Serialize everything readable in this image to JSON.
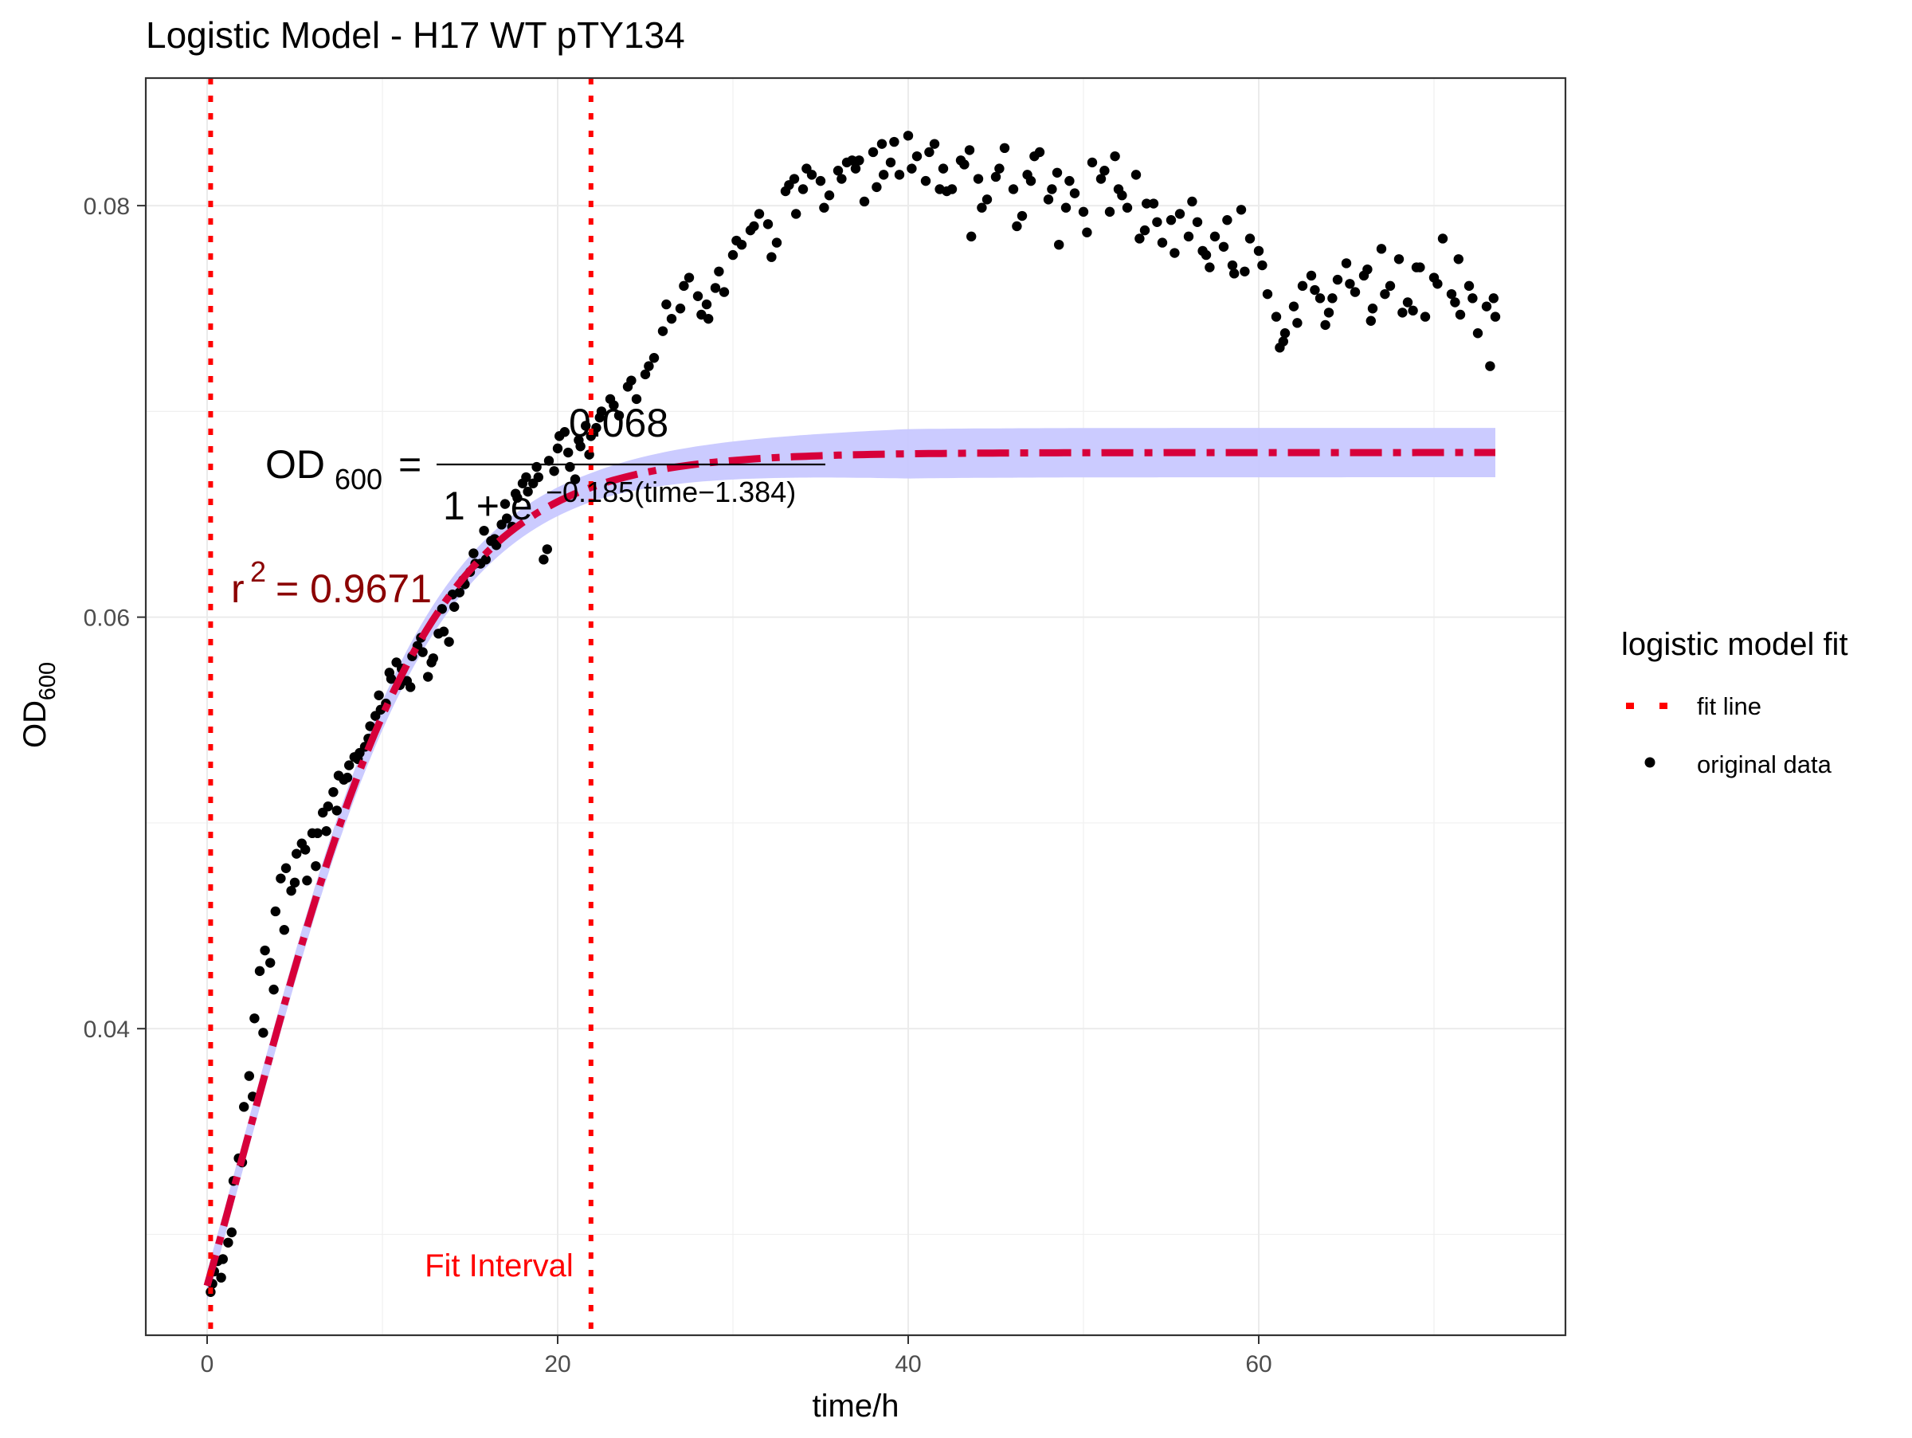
{
  "chart_data": {
    "type": "scatter",
    "title": "Logistic Model -  H17 WT pTY134",
    "xlabel": "time/h",
    "ylabel": {
      "main": "OD",
      "sub": "600"
    },
    "xlim": [
      -3.5,
      77.5
    ],
    "ylim": [
      0.0251,
      0.0862
    ],
    "x_ticks": [
      0,
      20,
      40,
      60
    ],
    "x_tick_labels": [
      "0",
      "20",
      "40",
      "60"
    ],
    "y_ticks": [
      0.04,
      0.06,
      0.08
    ],
    "y_tick_labels": [
      "0.04",
      "0.06",
      "0.08"
    ],
    "grid": true,
    "legend": {
      "title": "logistic model fit",
      "placement": "right",
      "entries": [
        {
          "label": "fit line",
          "kind": "line",
          "color": "#ff0000"
        },
        {
          "label": "original data",
          "kind": "point",
          "color": "#000000"
        }
      ]
    },
    "fit_interval": {
      "x": [
        0.2,
        21.9
      ],
      "label": "Fit Interval",
      "color": "#ff0000"
    },
    "equation": {
      "lhs": "OD",
      "lhs_sub": "600",
      "numerator": "0.068",
      "denominator_base": "1 + e",
      "denominator_exponent": "−0.185(time−1.384)"
    },
    "r_squared": {
      "prefix": "r",
      "power": "2",
      "value": "= 0.9671"
    },
    "model": {
      "K": 0.068,
      "r": 0.185,
      "t0": 1.384,
      "N0": 0.0275
    },
    "confidence_band": {
      "color": "#c8c8ff"
    },
    "fit_line": {
      "color": "#d7003a"
    },
    "points_series": [
      {
        "x": [
          0.2,
          0.4,
          0.6,
          0.9,
          1.2,
          1.5,
          1.8,
          2.1,
          2.4,
          2.7,
          3.0,
          3.3,
          3.6,
          3.9,
          4.2,
          4.5,
          4.8,
          5.1,
          5.4,
          5.7,
          6.0,
          6.3,
          6.6,
          6.9,
          7.2,
          7.5,
          7.8,
          8.1,
          8.4,
          8.7,
          9.0,
          9.3,
          9.6,
          9.9,
          10.2,
          10.5,
          10.8,
          11.1,
          11.4,
          11.7,
          12.0,
          12.3,
          12.6,
          12.9,
          13.2,
          13.5,
          13.8,
          14.1,
          14.4,
          14.7,
          15.0,
          15.3,
          15.6,
          15.9,
          16.2,
          16.5,
          16.8,
          17.1,
          17.4,
          17.7,
          18.0,
          18.3,
          18.6,
          18.9,
          19.2,
          19.5,
          19.8,
          20.1,
          20.4,
          20.7,
          21.0,
          21.3,
          21.6,
          21.9,
          22.2,
          22.5
        ],
        "y": [
          0.0272,
          0.0282,
          0.0287,
          0.0288,
          0.0296,
          0.0326,
          0.0337,
          0.0362,
          0.0377,
          0.0405,
          0.0428,
          0.0438,
          0.0432,
          0.0457,
          0.0473,
          0.0478,
          0.0467,
          0.0485,
          0.049,
          0.0472,
          0.0495,
          0.0495,
          0.0505,
          0.0508,
          0.0515,
          0.0523,
          0.0521,
          0.0528,
          0.0532,
          0.0534,
          0.0537,
          0.0547,
          0.0552,
          0.0555,
          0.0558,
          0.057,
          0.0578,
          0.0575,
          0.0569,
          0.0581,
          0.0586,
          0.0583,
          0.0571,
          0.058,
          0.0592,
          0.0593,
          0.0588,
          0.0605,
          0.0612,
          0.0616,
          0.0622,
          0.0626,
          0.0626,
          0.0628,
          0.0637,
          0.0635,
          0.0645,
          0.0648,
          0.0644,
          0.0658,
          0.0665,
          0.0661,
          0.0665,
          0.0668,
          0.0628,
          0.0676,
          0.0671,
          0.0688,
          0.069,
          0.0673,
          0.0667,
          0.0683,
          0.0693,
          0.0688,
          0.0692,
          0.07
        ]
      },
      {
        "x": [
          23.0,
          23.5,
          24.0,
          24.5,
          25.0,
          25.5,
          26.0,
          26.5,
          27.0,
          27.5,
          28.0,
          28.5,
          29.0,
          29.5,
          30.0,
          30.5,
          31.0,
          31.5,
          32.0,
          32.5,
          33.0,
          33.5,
          34.0,
          34.5,
          35.0,
          35.5,
          36.0,
          36.5,
          37.0,
          37.5,
          38.0,
          38.5,
          39.0,
          39.5,
          40.0,
          40.5,
          41.0,
          41.5,
          42.0,
          42.5,
          43.0,
          43.5,
          44.0,
          44.5,
          45.0,
          45.5,
          46.0,
          46.5,
          47.0,
          47.5,
          48.0,
          48.5,
          49.0,
          49.5,
          50.0,
          50.5,
          51.0,
          51.5,
          52.0,
          52.5,
          53.0,
          53.5,
          54.0,
          54.5,
          55.0,
          55.5,
          56.0,
          56.5,
          57.0,
          57.5,
          58.0,
          58.5,
          59.0,
          59.5,
          60.0
        ],
        "y": [
          0.0706,
          0.0698,
          0.0712,
          0.0706,
          0.0718,
          0.0726,
          0.0739,
          0.0745,
          0.075,
          0.0765,
          0.0756,
          0.0752,
          0.076,
          0.0758,
          0.0776,
          0.0781,
          0.0788,
          0.0796,
          0.0791,
          0.0782,
          0.0807,
          0.0813,
          0.0808,
          0.0815,
          0.0812,
          0.0805,
          0.0817,
          0.0821,
          0.0818,
          0.0802,
          0.0826,
          0.083,
          0.0821,
          0.0815,
          0.0834,
          0.0824,
          0.0812,
          0.083,
          0.0818,
          0.0808,
          0.0822,
          0.0827,
          0.0813,
          0.0803,
          0.0814,
          0.0828,
          0.0808,
          0.0795,
          0.0812,
          0.0826,
          0.0803,
          0.0816,
          0.0799,
          0.0806,
          0.0797,
          0.0821,
          0.0813,
          0.0797,
          0.0808,
          0.0799,
          0.0815,
          0.0788,
          0.0801,
          0.0782,
          0.0793,
          0.0796,
          0.0785,
          0.0792,
          0.0776,
          0.0785,
          0.078,
          0.0771,
          0.0798,
          0.0784,
          0.0778
        ]
      },
      {
        "x": [
          60.5,
          61.0,
          61.5,
          62.0,
          62.5,
          63.0,
          63.5,
          64.0,
          64.5,
          65.0,
          65.5,
          66.0,
          66.5,
          67.0,
          67.5,
          68.0,
          68.5,
          69.0,
          69.5,
          70.0,
          70.5,
          71.0,
          71.5,
          72.0,
          72.5,
          73.0,
          73.5
        ],
        "y": [
          0.0757,
          0.0746,
          0.0738,
          0.0751,
          0.0761,
          0.0766,
          0.0755,
          0.0748,
          0.0764,
          0.0772,
          0.0758,
          0.0766,
          0.075,
          0.0779,
          0.0761,
          0.0774,
          0.0753,
          0.077,
          0.0746,
          0.0765,
          0.0784,
          0.0757,
          0.0747,
          0.0761,
          0.0738,
          0.0751,
          0.0746
        ]
      }
    ],
    "extra_points": {
      "x": [
        0.3,
        0.8,
        1.4,
        2.0,
        2.6,
        3.2,
        3.8,
        4.4,
        5.0,
        5.6,
        6.2,
        6.8,
        7.4,
        8.0,
        8.6,
        9.2,
        9.8,
        10.4,
        11.0,
        11.6,
        12.2,
        12.8,
        13.4,
        14.0,
        14.6,
        15.2,
        15.8,
        16.4,
        17.0,
        17.6,
        18.2,
        18.8,
        19.4,
        20.0,
        20.6,
        21.2,
        21.8,
        22.4,
        23.2,
        24.2,
        25.2,
        26.2,
        27.2,
        28.2,
        29.2,
        30.2,
        31.2,
        32.2,
        33.2,
        34.2,
        35.2,
        36.2,
        37.2,
        38.2,
        39.2,
        40.2,
        41.2,
        42.2,
        43.2,
        44.2,
        45.2,
        46.2,
        47.2,
        48.2,
        49.2,
        50.2,
        51.2,
        52.2,
        53.2,
        54.2,
        55.2,
        56.2,
        57.2,
        58.2,
        59.2,
        60.2,
        61.2,
        62.2,
        63.2,
        64.2,
        65.2,
        66.2,
        67.2,
        68.2,
        69.2,
        70.2,
        71.2,
        72.2,
        73.2,
        36.8,
        41.8,
        46.8,
        51.8,
        56.8,
        61.4,
        66.4,
        71.4,
        43.6,
        48.6,
        53.6,
        58.6,
        38.6,
        33.6,
        28.6,
        63.8,
        68.8,
        73.4
      ],
      "y": [
        0.0276,
        0.0279,
        0.0301,
        0.0335,
        0.0367,
        0.0398,
        0.0419,
        0.0448,
        0.0471,
        0.0487,
        0.0479,
        0.0496,
        0.0506,
        0.0522,
        0.0531,
        0.0541,
        0.0562,
        0.0573,
        0.0567,
        0.0566,
        0.059,
        0.0578,
        0.0604,
        0.0611,
        0.0618,
        0.0631,
        0.0642,
        0.0638,
        0.0655,
        0.066,
        0.0668,
        0.0673,
        0.0633,
        0.0682,
        0.068,
        0.0686,
        0.0679,
        0.0697,
        0.0703,
        0.0715,
        0.0722,
        0.0752,
        0.0761,
        0.0747,
        0.0768,
        0.0783,
        0.079,
        0.0775,
        0.081,
        0.0818,
        0.0799,
        0.0813,
        0.0822,
        0.0809,
        0.0831,
        0.0818,
        0.0826,
        0.0807,
        0.082,
        0.0799,
        0.0818,
        0.079,
        0.0824,
        0.0808,
        0.0812,
        0.0787,
        0.0817,
        0.0805,
        0.0784,
        0.0792,
        0.0777,
        0.0802,
        0.077,
        0.0793,
        0.0768,
        0.0771,
        0.0731,
        0.0743,
        0.0759,
        0.0755,
        0.0762,
        0.0769,
        0.0757,
        0.0748,
        0.077,
        0.0762,
        0.0753,
        0.0755,
        0.0722,
        0.0822,
        0.0808,
        0.0815,
        0.0824,
        0.0778,
        0.0734,
        0.0744,
        0.0774,
        0.0785,
        0.0781,
        0.0801,
        0.0767,
        0.0815,
        0.0796,
        0.0745,
        0.0742,
        0.0749,
        0.0755
      ]
    }
  }
}
